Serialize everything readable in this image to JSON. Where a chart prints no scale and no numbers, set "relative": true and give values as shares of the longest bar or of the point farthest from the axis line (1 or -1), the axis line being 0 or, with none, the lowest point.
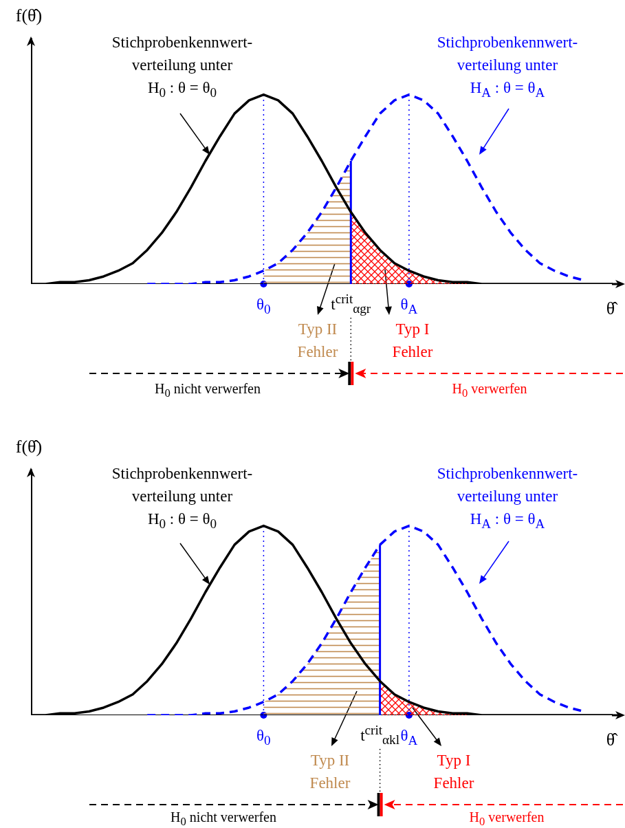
{
  "chart_data": [
    {
      "type": "line",
      "relative": true,
      "xlabel": "θ̂",
      "ylabel": "f(θ̂)",
      "categories": [
        null,
        null,
        null,
        null,
        null,
        null,
        null,
        null,
        null,
        null,
        null,
        null,
        null,
        null,
        null,
        null,
        "θ$_{0}$",
        null,
        null,
        null,
        null,
        null,
        "t$^{crit}$$_{αgr}$",
        null,
        null,
        null,
        "θ$_{A}$",
        null,
        null,
        null,
        null,
        null,
        null,
        null,
        null,
        null,
        null,
        null,
        null,
        null,
        null
      ],
      "series": [
        {
          "type": "area",
          "color": "#c08a4f",
          "values": [
            null,
            null,
            null,
            null,
            null,
            null,
            null,
            null,
            null,
            null,
            null,
            null,
            null,
            null,
            null,
            null,
            0.07,
            0.11,
            0.18,
            0.27,
            0.38,
            0.51,
            0.65,
            null,
            null,
            null,
            null,
            null,
            null,
            null,
            null,
            null,
            null,
            null,
            null,
            null,
            null,
            null,
            null,
            null,
            null
          ]
        },
        {
          "type": "area",
          "color": "#ff0000",
          "values": [
            null,
            null,
            null,
            null,
            null,
            null,
            null,
            null,
            null,
            null,
            null,
            null,
            null,
            null,
            null,
            null,
            null,
            null,
            null,
            null,
            null,
            null,
            0.38,
            0.27,
            0.18,
            0.11,
            0.07,
            0.04,
            0.02,
            0.01,
            0.01,
            null,
            null,
            null,
            null,
            null,
            null,
            null,
            null,
            null,
            null
          ]
        },
        {
          "type": "line",
          "color": "#000000",
          "line_style": "solid",
          "values": [
            0,
            0,
            0.01,
            0.01,
            0.02,
            0.04,
            0.07,
            0.11,
            0.18,
            0.27,
            0.38,
            0.51,
            0.65,
            0.78,
            0.9,
            0.97,
            1,
            0.97,
            0.9,
            0.78,
            0.65,
            0.51,
            0.38,
            0.27,
            0.18,
            0.11,
            0.07,
            0.04,
            0.02,
            0.01,
            0.01,
            0,
            0,
            0,
            0,
            0,
            0,
            0,
            0,
            0,
            0
          ]
        },
        {
          "type": "line",
          "color": "#0000ff",
          "line_style": "dashed",
          "values": [
            null,
            null,
            null,
            null,
            null,
            null,
            null,
            null,
            0,
            0,
            0,
            0,
            0.01,
            0.01,
            0.02,
            0.04,
            0.07,
            0.11,
            0.18,
            0.27,
            0.38,
            0.51,
            0.65,
            0.78,
            0.9,
            0.97,
            1,
            0.97,
            0.9,
            0.78,
            0.65,
            0.51,
            0.38,
            0.27,
            0.18,
            0.11,
            0.07,
            0.04,
            0.02,
            null,
            null
          ]
        }
      ],
      "ref_lines": [
        {
          "axis": "x",
          "value": "θ$_{0}$",
          "color": "#0000ff",
          "line_style": "dotted"
        },
        {
          "axis": "x",
          "value": "θ$_{A}$",
          "color": "#0000ff",
          "line_style": "dotted"
        },
        {
          "axis": "x",
          "value": "t$^{crit}$$_{αgr}$",
          "color": "#0000ff",
          "line_style": "solid"
        }
      ],
      "annotations": [
        "Stichprobenkennwert-\nverteilung unter\nH$_{0}$ : θ = θ$_{0}$",
        "Stichprobenkennwert-\nverteilung unter\nH$_{A}$ : θ = θ$_{A}$",
        "Typ II\nFehler",
        "Typ I\nFehler",
        "H$_{0}$ nicht verwerfen",
        "H$_{0}$ verwerfen"
      ]
    },
    {
      "type": "line",
      "relative": true,
      "xlabel": "θ̂",
      "ylabel": "f(θ̂)",
      "categories": [
        null,
        null,
        null,
        null,
        null,
        null,
        null,
        null,
        null,
        null,
        null,
        null,
        null,
        null,
        null,
        null,
        "θ$_{0}$",
        null,
        null,
        null,
        null,
        null,
        null,
        null,
        "t$^{crit}$$_{αkl}$",
        null,
        "θ$_{A}$",
        null,
        null,
        null,
        null,
        null,
        null,
        null,
        null,
        null,
        null,
        null,
        null,
        null,
        null
      ],
      "series": [
        {
          "type": "area",
          "color": "#c08a4f",
          "values": [
            null,
            null,
            null,
            null,
            null,
            null,
            null,
            null,
            null,
            null,
            null,
            null,
            null,
            null,
            null,
            null,
            0.07,
            0.11,
            0.18,
            0.27,
            0.38,
            0.51,
            0.65,
            0.78,
            0.9,
            null,
            null,
            null,
            null,
            null,
            null,
            null,
            null,
            null,
            null,
            null,
            null,
            null,
            null,
            null,
            null
          ]
        },
        {
          "type": "area",
          "color": "#ff0000",
          "values": [
            null,
            null,
            null,
            null,
            null,
            null,
            null,
            null,
            null,
            null,
            null,
            null,
            null,
            null,
            null,
            null,
            null,
            null,
            null,
            null,
            null,
            null,
            null,
            null,
            0.18,
            0.11,
            0.07,
            0.04,
            0.02,
            0.01,
            0.01,
            null,
            null,
            null,
            null,
            null,
            null,
            null,
            null,
            null,
            null
          ]
        },
        {
          "type": "line",
          "color": "#000000",
          "line_style": "solid",
          "values": [
            0,
            0,
            0.01,
            0.01,
            0.02,
            0.04,
            0.07,
            0.11,
            0.18,
            0.27,
            0.38,
            0.51,
            0.65,
            0.78,
            0.9,
            0.97,
            1,
            0.97,
            0.9,
            0.78,
            0.65,
            0.51,
            0.38,
            0.27,
            0.18,
            0.11,
            0.07,
            0.04,
            0.02,
            0.01,
            0.01,
            0,
            0,
            0,
            0,
            0,
            0,
            0,
            0,
            0,
            0
          ]
        },
        {
          "type": "line",
          "color": "#0000ff",
          "line_style": "dashed",
          "values": [
            null,
            null,
            null,
            null,
            null,
            null,
            null,
            null,
            0,
            0,
            0,
            0,
            0.01,
            0.01,
            0.02,
            0.04,
            0.07,
            0.11,
            0.18,
            0.27,
            0.38,
            0.51,
            0.65,
            0.78,
            0.9,
            0.97,
            1,
            0.97,
            0.9,
            0.78,
            0.65,
            0.51,
            0.38,
            0.27,
            0.18,
            0.11,
            0.07,
            0.04,
            0.02,
            null,
            null
          ]
        }
      ],
      "ref_lines": [
        {
          "axis": "x",
          "value": "θ$_{0}$",
          "color": "#0000ff",
          "line_style": "dotted"
        },
        {
          "axis": "x",
          "value": "θ$_{A}$",
          "color": "#0000ff",
          "line_style": "dotted"
        },
        {
          "axis": "x",
          "value": "t$^{crit}$$_{αkl}$",
          "color": "#0000ff",
          "line_style": "solid"
        }
      ],
      "annotations": [
        "Stichprobenkennwert-\nverteilung unter\nH$_{0}$ : θ = θ$_{0}$",
        "Stichprobenkennwert-\nverteilung unter\nH$_{A}$ : θ = θ$_{A}$",
        "Typ II\nFehler",
        "Typ I\nFehler",
        "H$_{0}$ nicht verwerfen",
        "H$_{0}$ verwerfen"
      ]
    }
  ]
}
